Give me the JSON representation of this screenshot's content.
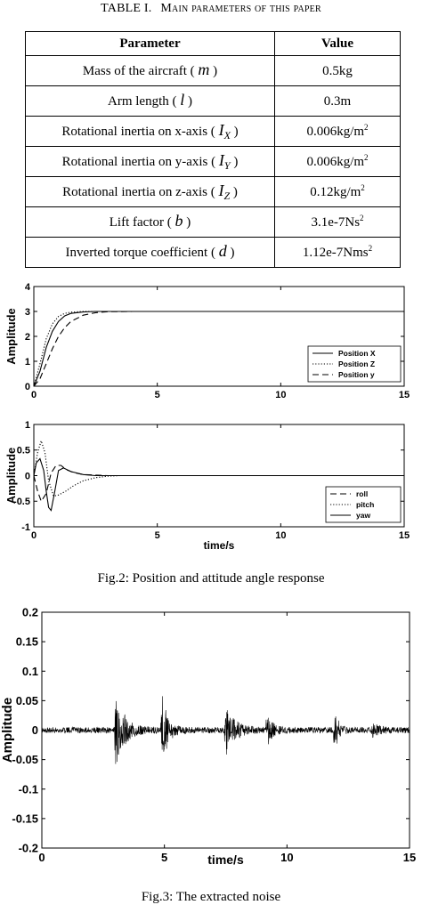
{
  "table": {
    "caption_prefix": "TABLE I.",
    "caption_title": "Main parameters of this paper",
    "headers": [
      "Parameter",
      "Value"
    ],
    "rows": [
      {
        "label": "Mass of the aircraft (",
        "sym": "m",
        "sub": "",
        "close": ")",
        "value": "0.5kg",
        "sup": ""
      },
      {
        "label": "Arm length (",
        "sym": "l",
        "sub": "",
        "close": ")",
        "value": "0.3m",
        "sup": ""
      },
      {
        "label": "Rotational inertia on x-axis (",
        "sym": "I",
        "sub": "X",
        "close": ")",
        "value": "0.006kg/m",
        "sup": "2"
      },
      {
        "label": "Rotational inertia on y-axis (",
        "sym": "I",
        "sub": "Y",
        "close": ")",
        "value": "0.006kg/m",
        "sup": "2"
      },
      {
        "label": "Rotational inertia on z-axis (",
        "sym": "I",
        "sub": "Z",
        "close": ")",
        "value": "0.12kg/m",
        "sup": "2"
      },
      {
        "label": "Lift factor (",
        "sym": "b",
        "sub": "",
        "close": ")",
        "value": "3.1e-7Ns",
        "sup": "2"
      },
      {
        "label": "Inverted torque coefficient (",
        "sym": "d",
        "sub": "",
        "close": ")",
        "value": "1.12e-7Nms",
        "sup": "2"
      }
    ]
  },
  "fig2_caption": "Fig.2: Position and attitude angle response",
  "fig3_caption": "Fig.3: The extracted noise",
  "chart_data": [
    {
      "type": "line",
      "ylabel": "Amplitude",
      "xlabel": "",
      "xlim": [
        0,
        15
      ],
      "ylim": [
        0,
        4
      ],
      "xticks": [
        0,
        5,
        10,
        15
      ],
      "yticks": [
        0,
        1,
        2,
        3,
        4
      ],
      "legend_position": "bottom-right",
      "series": [
        {
          "name": "Position X",
          "style": "solid",
          "x": [
            0,
            0.25,
            0.5,
            0.75,
            1,
            1.25,
            1.5,
            2,
            2.5,
            3,
            4,
            6,
            10,
            15
          ],
          "y": [
            0,
            0.6,
            1.55,
            2.2,
            2.6,
            2.82,
            2.92,
            2.98,
            3,
            3,
            3,
            3,
            3,
            3
          ]
        },
        {
          "name": "Position Z",
          "style": "dotted",
          "x": [
            0,
            0.25,
            0.5,
            0.75,
            1,
            1.25,
            1.5,
            2,
            2.5,
            3,
            4,
            6,
            10,
            15
          ],
          "y": [
            0,
            0.9,
            1.9,
            2.5,
            2.8,
            2.92,
            2.97,
            3,
            3,
            3,
            3,
            3,
            3,
            3
          ]
        },
        {
          "name": "Position y",
          "style": "dashed",
          "x": [
            0,
            0.25,
            0.5,
            0.75,
            1,
            1.25,
            1.5,
            2,
            2.5,
            3,
            4,
            6,
            10,
            15
          ],
          "y": [
            0,
            0.3,
            0.9,
            1.5,
            2.0,
            2.35,
            2.6,
            2.85,
            2.95,
            2.99,
            3,
            3,
            3,
            3
          ]
        }
      ]
    },
    {
      "type": "line",
      "ylabel": "Amplitude",
      "xlabel": "time/s",
      "xlim": [
        0,
        15
      ],
      "ylim": [
        -1,
        1
      ],
      "xticks": [
        0,
        5,
        10,
        15
      ],
      "yticks": [
        -1,
        -0.5,
        0,
        0.5,
        1
      ],
      "legend_position": "bottom-right",
      "series": [
        {
          "name": "roll",
          "style": "dashed",
          "x": [
            0,
            0.15,
            0.3,
            0.5,
            0.7,
            0.9,
            1.1,
            1.3,
            1.6,
            2,
            2.5,
            3,
            4,
            15
          ],
          "y": [
            0,
            -0.3,
            -0.5,
            -0.35,
            0.05,
            0.2,
            0.2,
            0.12,
            0.06,
            0.02,
            0.01,
            0,
            0,
            0
          ]
        },
        {
          "name": "pitch",
          "style": "dotted",
          "x": [
            0,
            0.15,
            0.3,
            0.45,
            0.6,
            0.8,
            1,
            1.3,
            1.6,
            2,
            2.5,
            3,
            3.5,
            4,
            15
          ],
          "y": [
            0,
            0.45,
            0.68,
            0.45,
            -0.1,
            -0.4,
            -0.38,
            -0.3,
            -0.2,
            -0.1,
            -0.04,
            -0.01,
            0,
            0,
            0
          ]
        },
        {
          "name": "yaw",
          "style": "solid",
          "x": [
            0,
            0.1,
            0.25,
            0.4,
            0.5,
            0.6,
            0.7,
            0.85,
            1,
            1.2,
            1.5,
            2,
            2.5,
            3,
            15
          ],
          "y": [
            0,
            0.25,
            0.33,
            0.1,
            -0.3,
            -0.62,
            -0.68,
            -0.3,
            0.1,
            0.15,
            0.08,
            0.02,
            0,
            0,
            0
          ]
        }
      ]
    },
    {
      "type": "line",
      "ylabel": "Amplitude",
      "xlabel": "time/s",
      "xlim": [
        0,
        15
      ],
      "ylim": [
        -0.2,
        0.2
      ],
      "xticks": [
        0,
        5,
        10,
        15
      ],
      "yticks": [
        -0.2,
        -0.15,
        -0.1,
        -0.05,
        0,
        0.05,
        0.1,
        0.15,
        0.2
      ],
      "series": [
        {
          "name": "",
          "style": "noise",
          "baseline_amplitude": 0.005,
          "bursts": [
            {
              "center": 3.0,
              "width": 0.35,
              "amplitude": 0.065
            },
            {
              "center": 4.9,
              "width": 0.25,
              "amplitude": 0.06
            },
            {
              "center": 7.5,
              "width": 0.35,
              "amplitude": 0.04
            },
            {
              "center": 9.2,
              "width": 0.2,
              "amplitude": 0.025
            },
            {
              "center": 11.95,
              "width": 0.15,
              "amplitude": 0.035
            },
            {
              "center": 13.5,
              "width": 0.2,
              "amplitude": 0.012
            }
          ]
        }
      ]
    }
  ]
}
